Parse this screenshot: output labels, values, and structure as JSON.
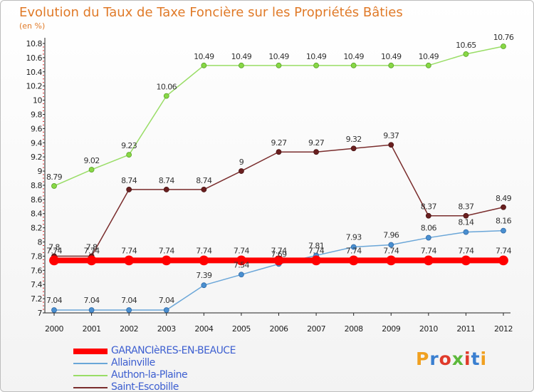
{
  "chart_data": {
    "type": "line",
    "title": "Evolution du Taux de Taxe Foncière sur les Propriétés Bâties",
    "subtitle": "(en %)",
    "x": [
      "2000",
      "2001",
      "2002",
      "2003",
      "2004",
      "2005",
      "2006",
      "2007",
      "2008",
      "2009",
      "2010",
      "2011",
      "2012"
    ],
    "ylim": [
      7,
      10.8
    ],
    "yticks": [
      "7",
      "7.2",
      "7.4",
      "7.6",
      "7.8",
      "8",
      "8.2",
      "8.4",
      "8.6",
      "8.8",
      "9",
      "9.2",
      "9.4",
      "9.6",
      "9.8",
      "10",
      "10.2",
      "10.4",
      "10.6",
      "10.8"
    ],
    "grid": false,
    "series": [
      {
        "name": "GARANCIèRES-EN-BEAUCE",
        "color": "#ff0000",
        "values": [
          7.74,
          7.74,
          7.74,
          7.74,
          7.74,
          7.74,
          7.74,
          7.74,
          7.74,
          7.74,
          7.74,
          7.74,
          7.74
        ],
        "labels": [
          "7.74",
          "7.74",
          "7.74",
          "7.74",
          "7.74",
          "7.74",
          "7.74",
          "7.74",
          "7.74",
          "7.74",
          "7.74",
          "7.74",
          "7.74"
        ]
      },
      {
        "name": "Allainville",
        "color": "#6aa6d8",
        "values": [
          7.04,
          7.04,
          7.04,
          7.04,
          7.39,
          7.54,
          7.69,
          7.81,
          7.93,
          7.96,
          8.06,
          8.14,
          8.16
        ],
        "labels": [
          "7.04",
          "7.04",
          "7.04",
          "7.04",
          "7.39",
          "7.54",
          "7.69",
          "7.81",
          "7.93",
          "7.96",
          "8.06",
          "8.14",
          "8.16"
        ]
      },
      {
        "name": "Authon-la-Plaine",
        "color": "#99dd66",
        "values": [
          8.79,
          9.02,
          9.23,
          10.06,
          10.49,
          10.49,
          10.49,
          10.49,
          10.49,
          10.49,
          10.49,
          10.65,
          10.76
        ],
        "labels": [
          "8.79",
          "9.02",
          "9.23",
          "10.06",
          "10.49",
          "10.49",
          "10.49",
          "10.49",
          "10.49",
          "10.49",
          "10.49",
          "10.65",
          "10.76"
        ]
      },
      {
        "name": "Saint-Escobille",
        "color": "#7a2d2d",
        "values": [
          7.8,
          7.8,
          8.74,
          8.74,
          8.74,
          9,
          9.27,
          9.27,
          9.32,
          9.37,
          8.37,
          8.37,
          8.49
        ],
        "labels": [
          "7.8",
          "7.8",
          "8.74",
          "8.74",
          "8.74",
          "9",
          "9.27",
          "9.27",
          "9.32",
          "9.37",
          "8.37",
          "8.37",
          "8.49"
        ]
      }
    ]
  },
  "logo": {
    "text": "Proxiti",
    "letters": [
      "P",
      "r",
      "o",
      "x",
      "i",
      "t",
      "i"
    ],
    "colors": [
      "#f0a020",
      "#3a7fd0",
      "#e03a2a",
      "#5cb83a",
      "#e03a2a",
      "#3a7fd0",
      "#f0a020"
    ]
  }
}
